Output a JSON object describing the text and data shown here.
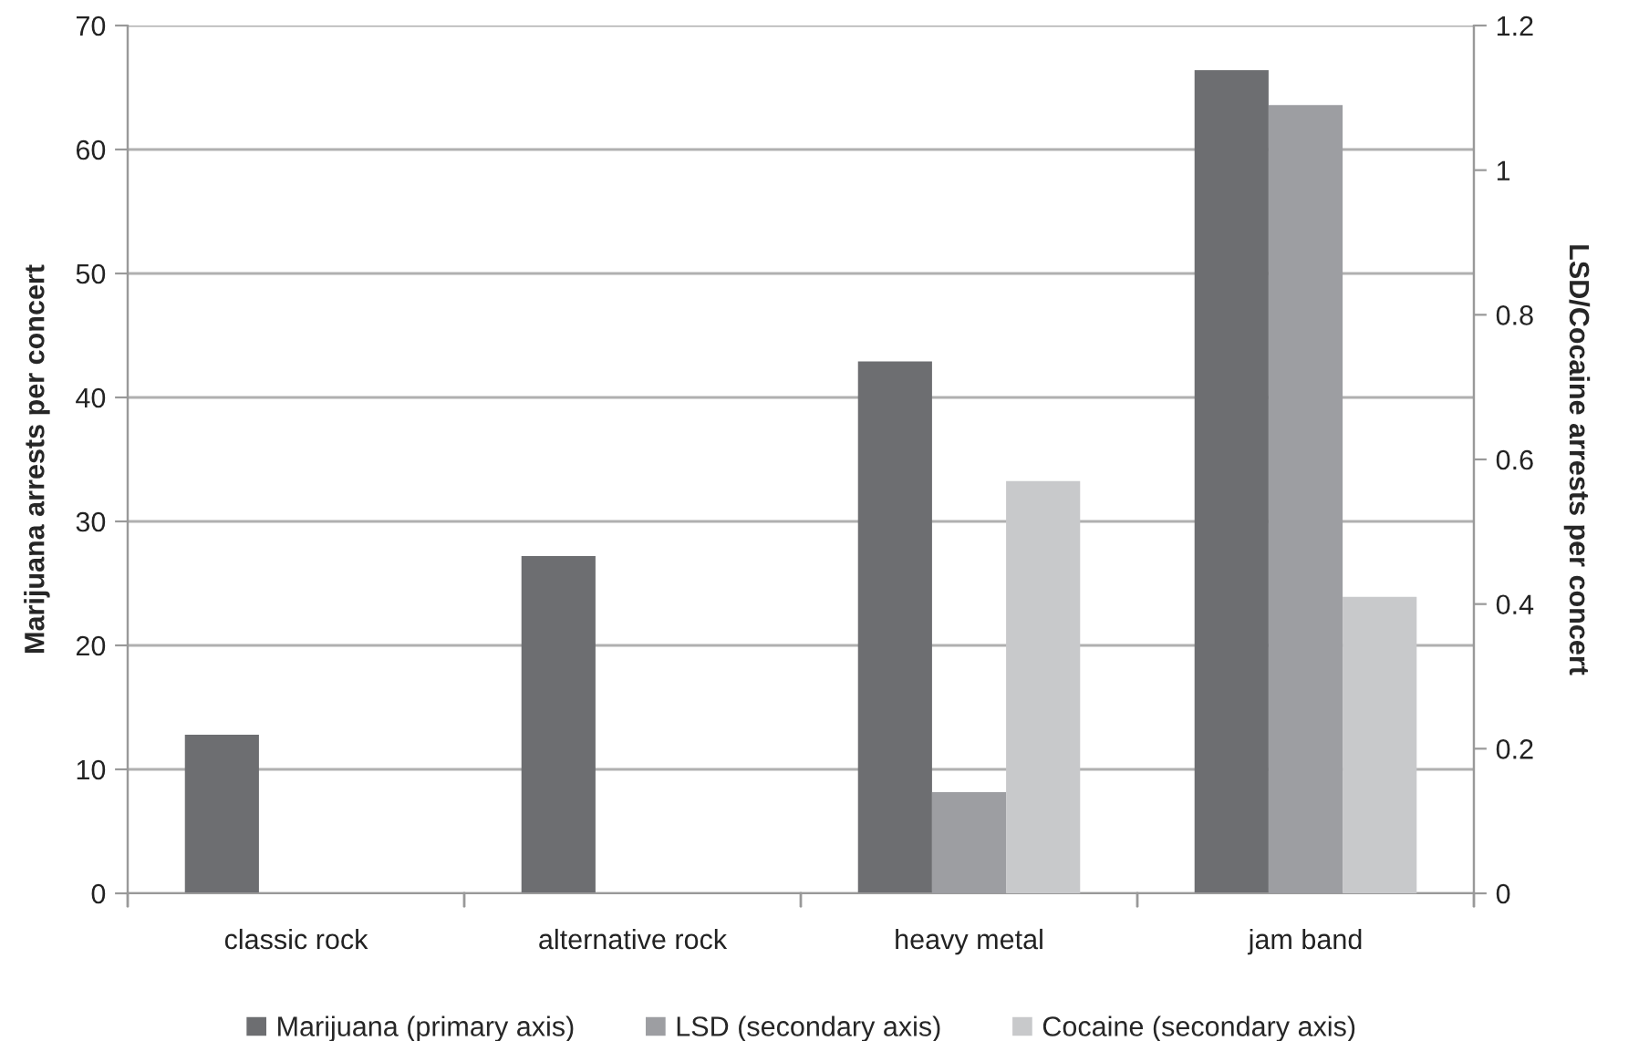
{
  "chart_data": {
    "type": "bar",
    "categories": [
      "classic rock",
      "alternative rock",
      "heavy metal",
      "jam band"
    ],
    "ylabel": "Marijuana arrests per concert",
    "y2label": "LSD/Cocaine arrests per concert",
    "ylim": [
      0,
      70
    ],
    "yticks": [
      0,
      10,
      20,
      30,
      40,
      50,
      60,
      70
    ],
    "y2lim": [
      0,
      1.2
    ],
    "y2ticks": [
      {
        "value": 0,
        "label": "0"
      },
      {
        "value": 0.2,
        "label": "0.2"
      },
      {
        "value": 0.4,
        "label": "0.4"
      },
      {
        "value": 0.6,
        "label": "0.6"
      },
      {
        "value": 0.8,
        "label": "0.8"
      },
      {
        "value": 1,
        "label": "1"
      },
      {
        "value": 1.2,
        "label": "1.2"
      }
    ],
    "grid": "y",
    "legend": "bottom",
    "series": [
      {
        "name": "Marijuana (primary axis)",
        "color": "#6d6e71",
        "values": [
          12.8,
          27.2,
          42.9,
          66.4
        ]
      },
      {
        "name": "LSD (secondary axis)",
        "color": "#9d9ea2",
        "axis": "y2",
        "values": [
          null,
          null,
          0.14,
          1.09
        ]
      },
      {
        "name": "Cocaine (secondary axis)",
        "color": "#c8c9cb",
        "axis": "y2",
        "values": [
          null,
          null,
          0.57,
          0.41
        ]
      }
    ]
  }
}
